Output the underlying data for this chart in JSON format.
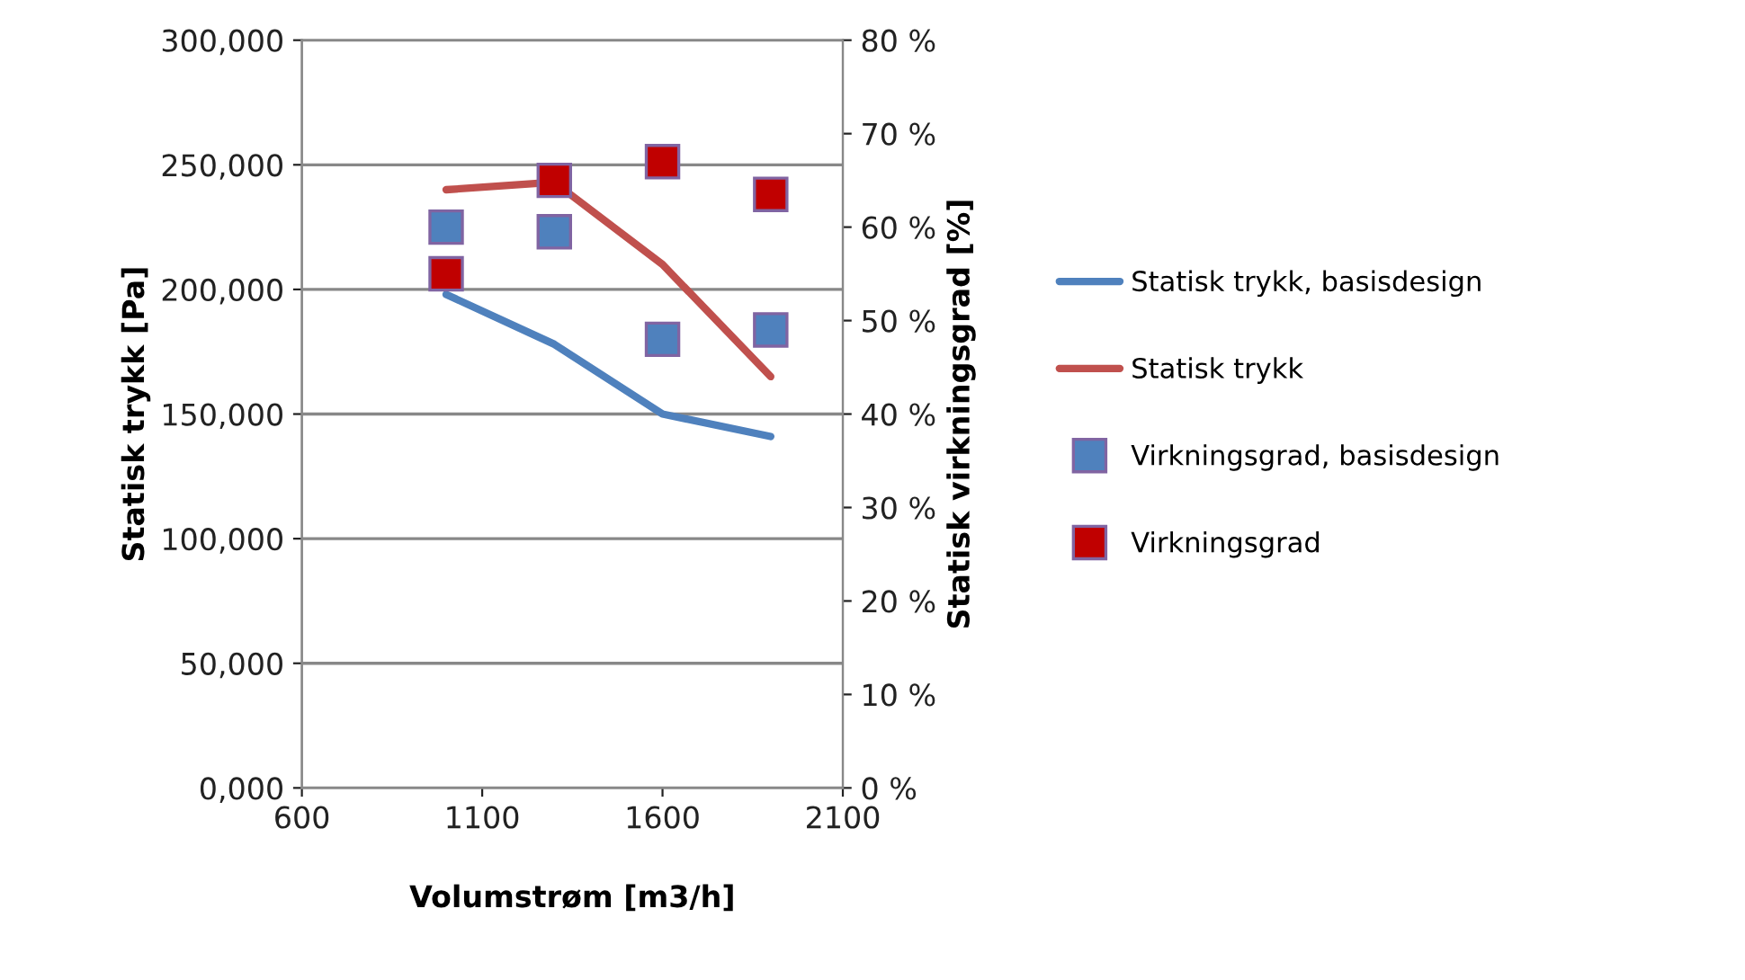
{
  "chart_data": {
    "type": "line",
    "xlabel": "Volumstrøm [m3/h]",
    "ylabel": "Statisk trykk [Pa]",
    "y2label": "Statisk virkningsgrad [%]",
    "xlim": [
      600,
      2100
    ],
    "xticks": [
      600,
      1100,
      1600,
      2100
    ],
    "ylim": [
      0,
      300000
    ],
    "yticks": [
      {
        "value": 0,
        "label": "0,000"
      },
      {
        "value": 50000,
        "label": "50,000"
      },
      {
        "value": 100000,
        "label": "100,000"
      },
      {
        "value": 150000,
        "label": "150,000"
      },
      {
        "value": 200000,
        "label": "200,000"
      },
      {
        "value": 250000,
        "label": "250,000"
      },
      {
        "value": 300000,
        "label": "300,000"
      }
    ],
    "y2lim": [
      0,
      80
    ],
    "y2ticks": [
      {
        "value": 0,
        "label": "0 %"
      },
      {
        "value": 10,
        "label": "10 %"
      },
      {
        "value": 20,
        "label": "20 %"
      },
      {
        "value": 30,
        "label": "30 %"
      },
      {
        "value": 40,
        "label": "40 %"
      },
      {
        "value": 50,
        "label": "50 %"
      },
      {
        "value": 60,
        "label": "60 %"
      },
      {
        "value": 70,
        "label": "70 %"
      },
      {
        "value": 80,
        "label": "80 %"
      }
    ],
    "grid": "y",
    "legend": "right",
    "series": [
      {
        "name": "Statisk trykk, basisdesign",
        "color": "#4f81bd",
        "x": [
          1000,
          1300,
          1600,
          1900
        ],
        "values": [
          198000,
          178000,
          150000,
          141000
        ]
      },
      {
        "name": "Statisk trykk",
        "color": "#c0504d",
        "x": [
          1000,
          1300,
          1600,
          1900
        ],
        "values": [
          240000,
          243000,
          210000,
          165000
        ]
      },
      {
        "name": "Virkningsgrad, basisdesign",
        "type": "scatter",
        "marker": "square",
        "axis": "y2",
        "color": "#4f81bd",
        "x": [
          1000,
          1300,
          1600,
          1900
        ],
        "values": [
          60,
          59.5,
          48,
          49
        ]
      },
      {
        "name": "Virkningsgrad",
        "type": "scatter",
        "marker": "square",
        "axis": "y2",
        "color": "#c00000",
        "x": [
          1000,
          1300,
          1600,
          1900
        ],
        "values": [
          55,
          65,
          67,
          63.5
        ]
      }
    ]
  }
}
